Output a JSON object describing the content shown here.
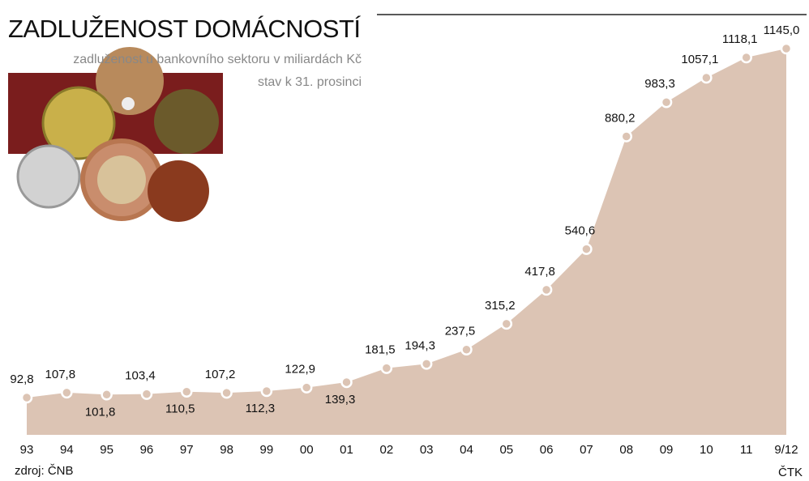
{
  "chart_data": {
    "type": "area",
    "title": "ZADLUŽENOST DOMÁCNOSTÍ",
    "subtitle": "zadluženost u bankovního sektoru v miliardách Kč",
    "note": "stav k 31. prosinci",
    "source": "zdroj: ČNB",
    "credit": "ČTK",
    "color": "#dcc4b4",
    "categories": [
      "93",
      "94",
      "95",
      "96",
      "97",
      "98",
      "99",
      "00",
      "01",
      "02",
      "03",
      "04",
      "05",
      "06",
      "07",
      "08",
      "09",
      "10",
      "11",
      "9/12"
    ],
    "values": [
      92.8,
      107.8,
      101.8,
      103.4,
      110.5,
      107.2,
      112.3,
      122.9,
      139.3,
      181.5,
      194.3,
      237.5,
      315.2,
      417.8,
      540.6,
      880.2,
      983.3,
      1057.1,
      1118.1,
      1145.0
    ],
    "value_labels": [
      "92,8",
      "107,8",
      "101,8",
      "103,4",
      "110,5",
      "107,2",
      "112,3",
      "122,9",
      "139,3",
      "181,5",
      "194,3",
      "237,5",
      "315,2",
      "417,8",
      "540,6",
      "880,2",
      "983,3",
      "1057,1",
      "1118,1",
      "1145,0"
    ]
  }
}
